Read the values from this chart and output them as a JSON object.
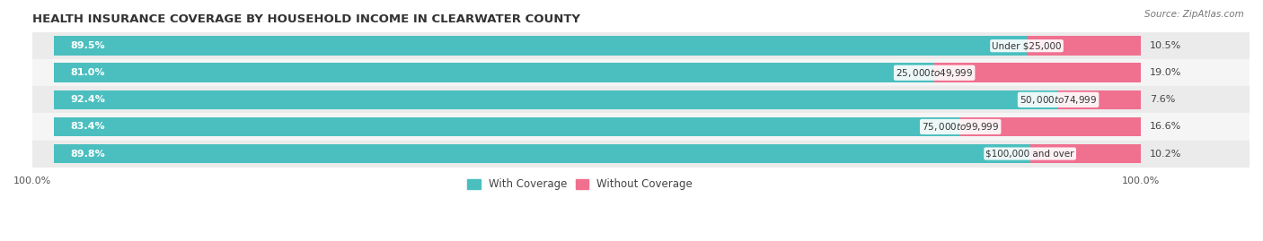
{
  "title": "HEALTH INSURANCE COVERAGE BY HOUSEHOLD INCOME IN CLEARWATER COUNTY",
  "source": "Source: ZipAtlas.com",
  "categories": [
    "Under $25,000",
    "$25,000 to $49,999",
    "$50,000 to $74,999",
    "$75,000 to $99,999",
    "$100,000 and over"
  ],
  "with_coverage": [
    89.5,
    81.0,
    92.4,
    83.4,
    89.8
  ],
  "without_coverage": [
    10.5,
    19.0,
    7.6,
    16.6,
    10.2
  ],
  "color_with": "#4bbfbf",
  "color_without": "#f07090",
  "title_fontsize": 9.5,
  "label_fontsize": 8.0,
  "tick_fontsize": 8,
  "legend_fontsize": 8.5,
  "bar_height": 0.72,
  "figsize": [
    14.06,
    2.69
  ],
  "dpi": 100,
  "row_colors": [
    "#ebebeb",
    "#f5f5f5",
    "#ebebeb",
    "#f5f5f5",
    "#ebebeb"
  ]
}
